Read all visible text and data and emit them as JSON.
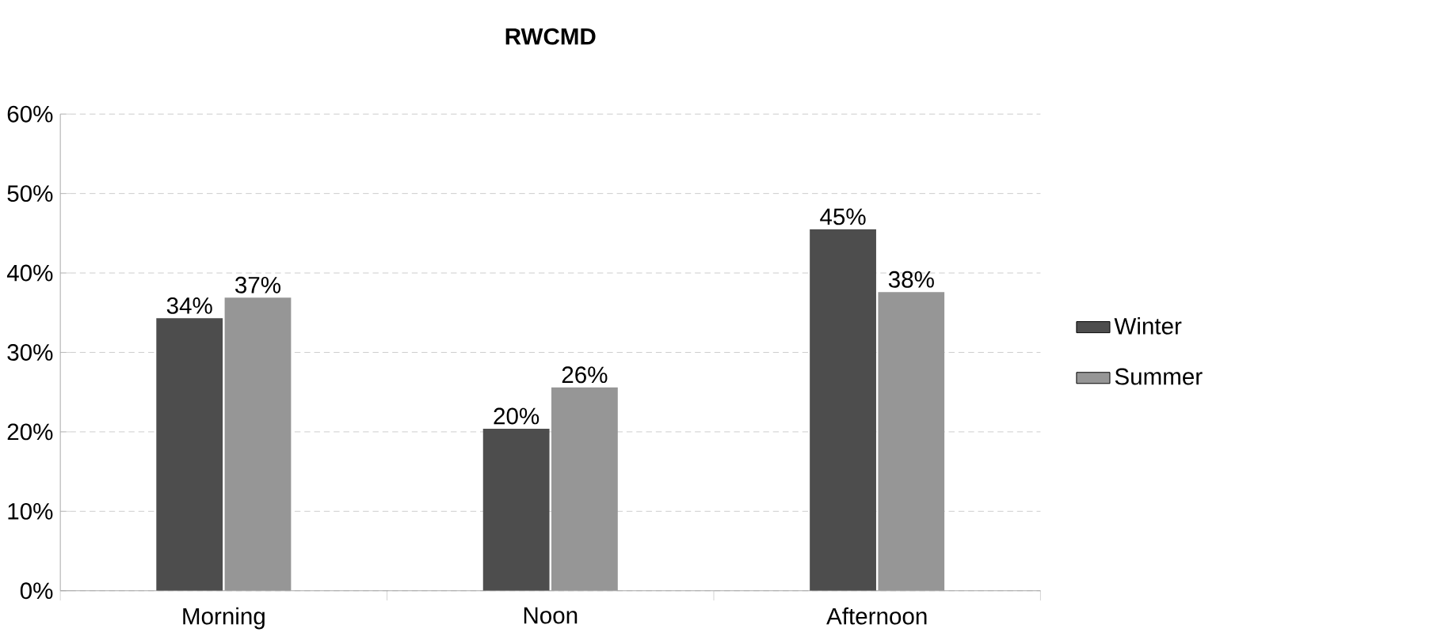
{
  "chart_data": {
    "type": "bar",
    "title": "RWCMD",
    "categories": [
      "Morning",
      "Noon",
      "Afternoon"
    ],
    "series": [
      {
        "name": "Winter",
        "color": "#4d4d4d",
        "values": [
          34.3,
          20.4,
          45.5
        ],
        "value_labels": [
          "34%",
          "20%",
          "45%"
        ]
      },
      {
        "name": "Summer",
        "color": "#969696",
        "values": [
          36.9,
          25.6,
          37.6
        ],
        "value_labels": [
          "37%",
          "26%",
          "38%"
        ]
      }
    ],
    "ylim": [
      0,
      60
    ],
    "yticks": [
      {
        "value": 0,
        "label": "0%"
      },
      {
        "value": 10,
        "label": "10%"
      },
      {
        "value": 20,
        "label": "20%"
      },
      {
        "value": 30,
        "label": "30%"
      },
      {
        "value": 40,
        "label": "40%"
      },
      {
        "value": 50,
        "label": "50%"
      },
      {
        "value": 60,
        "label": "60%"
      }
    ],
    "grid": "y",
    "legend": "right"
  }
}
